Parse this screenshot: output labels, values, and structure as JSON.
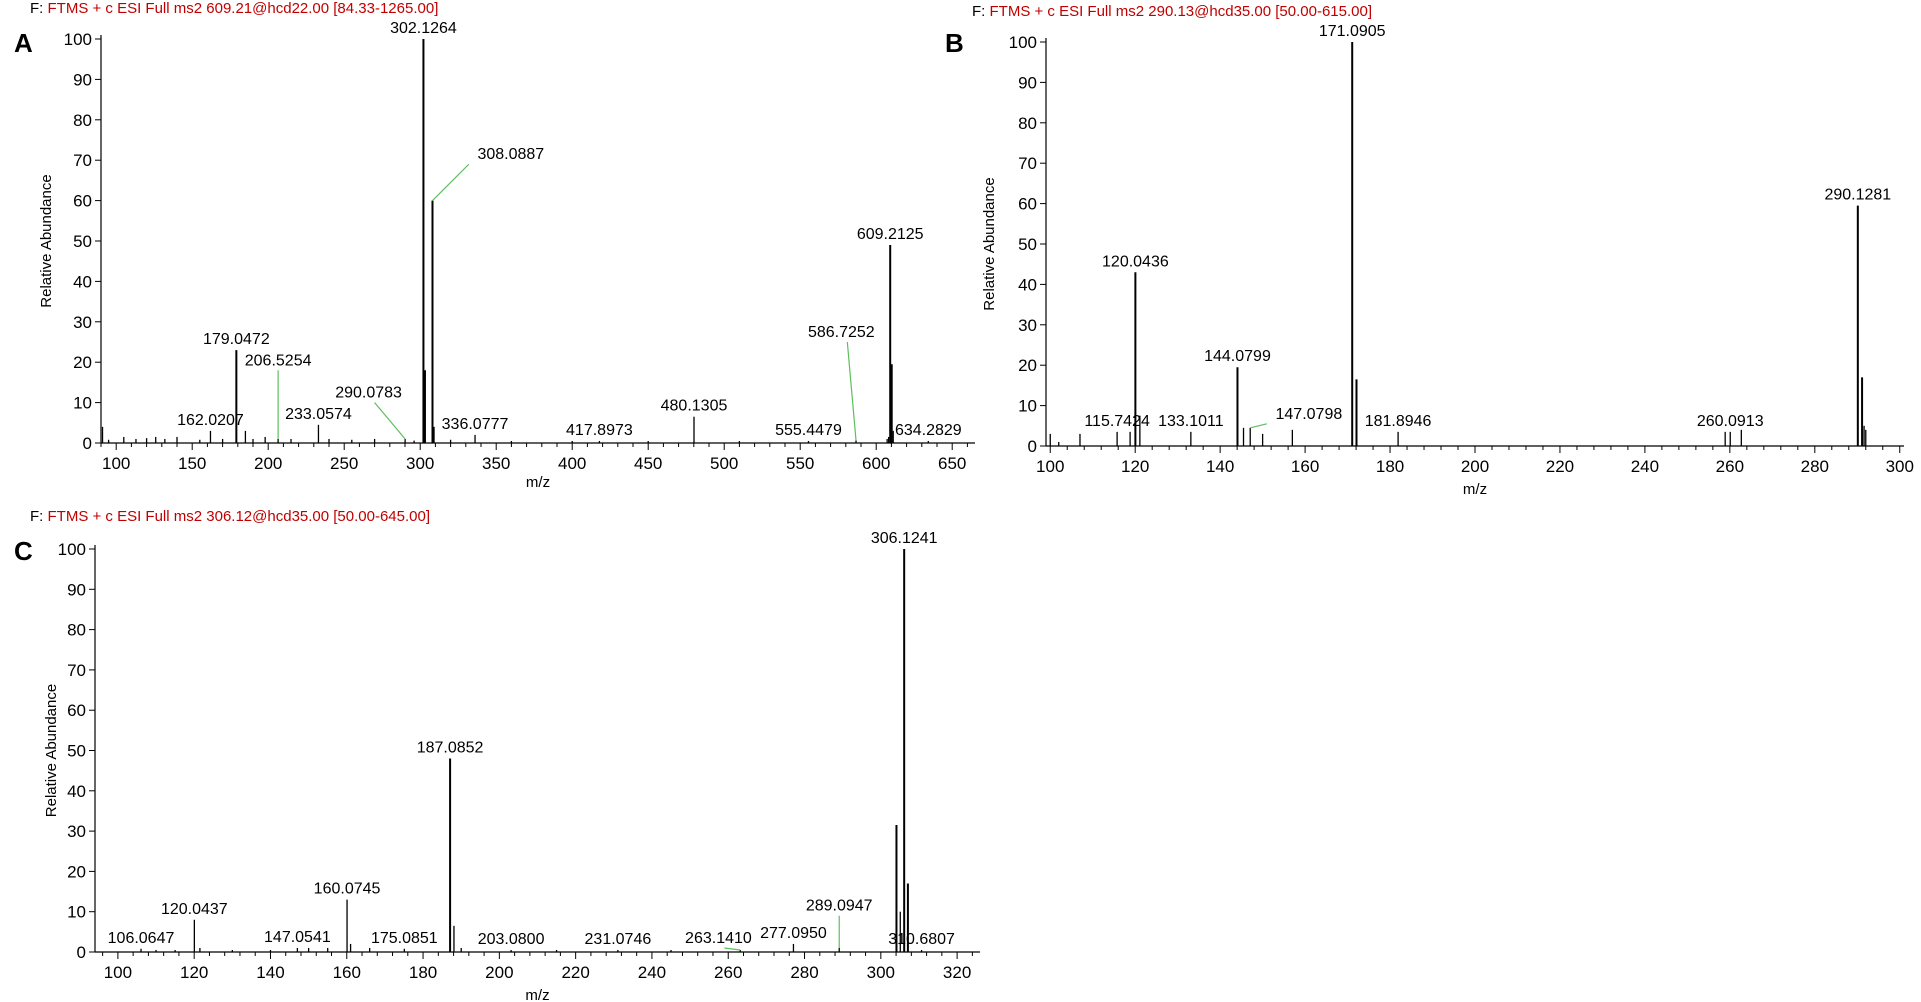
{
  "colors": {
    "title_text": "#c00000",
    "spectrum_line": "#000000",
    "leader_line": "#5cbf5c",
    "axis": "#000000"
  },
  "chart_data": [
    {
      "panel_label": "A",
      "type": "bar",
      "title_prefix": "F:",
      "title": "FTMS + c ESI Full ms2 609.21@hcd22.00 [84.33-1265.00]",
      "xlabel": "m/z",
      "ylabel": "Relative Abundance",
      "xlim": [
        90,
        665
      ],
      "ylim": [
        0,
        100
      ],
      "xticks": [
        100,
        150,
        200,
        250,
        300,
        350,
        400,
        450,
        500,
        550,
        600,
        650
      ],
      "yticks": [
        0,
        10,
        20,
        30,
        40,
        50,
        60,
        70,
        80,
        90,
        100
      ],
      "peaks": [
        {
          "mz": 91,
          "intensity": 4
        },
        {
          "mz": 95,
          "intensity": 0.8
        },
        {
          "mz": 105,
          "intensity": 1.5
        },
        {
          "mz": 113,
          "intensity": 1
        },
        {
          "mz": 120,
          "intensity": 1.2
        },
        {
          "mz": 126,
          "intensity": 1.5
        },
        {
          "mz": 132,
          "intensity": 1
        },
        {
          "mz": 140,
          "intensity": 1.5
        },
        {
          "mz": 155,
          "intensity": 0.8
        },
        {
          "mz": 162.0207,
          "intensity": 3
        },
        {
          "mz": 170,
          "intensity": 1
        },
        {
          "mz": 179.0472,
          "intensity": 23
        },
        {
          "mz": 185,
          "intensity": 3
        },
        {
          "mz": 190,
          "intensity": 1
        },
        {
          "mz": 198,
          "intensity": 1.5
        },
        {
          "mz": 206.5254,
          "intensity": 1
        },
        {
          "mz": 215,
          "intensity": 1
        },
        {
          "mz": 233.0574,
          "intensity": 4.5
        },
        {
          "mz": 240,
          "intensity": 1
        },
        {
          "mz": 255,
          "intensity": 0.8
        },
        {
          "mz": 270,
          "intensity": 1
        },
        {
          "mz": 290.0783,
          "intensity": 1
        },
        {
          "mz": 296,
          "intensity": 0.6
        },
        {
          "mz": 302.1264,
          "intensity": 100
        },
        {
          "mz": 303.13,
          "intensity": 18
        },
        {
          "mz": 308.0887,
          "intensity": 60
        },
        {
          "mz": 309.09,
          "intensity": 4
        },
        {
          "mz": 320,
          "intensity": 0.8
        },
        {
          "mz": 336.0777,
          "intensity": 2
        },
        {
          "mz": 360,
          "intensity": 0.5
        },
        {
          "mz": 400,
          "intensity": 0.5
        },
        {
          "mz": 417.8973,
          "intensity": 0.5
        },
        {
          "mz": 450,
          "intensity": 0.5
        },
        {
          "mz": 480.1305,
          "intensity": 6.5
        },
        {
          "mz": 510,
          "intensity": 0.5
        },
        {
          "mz": 555.4479,
          "intensity": 0.5
        },
        {
          "mz": 586.7252,
          "intensity": 0.6
        },
        {
          "mz": 607.2,
          "intensity": 1
        },
        {
          "mz": 608.2,
          "intensity": 1.5
        },
        {
          "mz": 609.2125,
          "intensity": 49
        },
        {
          "mz": 610.2,
          "intensity": 19.5
        },
        {
          "mz": 611.2,
          "intensity": 3
        },
        {
          "mz": 634.2829,
          "intensity": 0.5
        }
      ],
      "labels": [
        {
          "text": "302.1264",
          "mz": 302.1264,
          "intensity": 100
        },
        {
          "text": "308.0887",
          "mz": 308.0887,
          "intensity": 60,
          "callout_mz": 332,
          "callout_intensity": 69
        },
        {
          "text": "609.2125",
          "mz": 609.2125,
          "intensity": 49
        },
        {
          "text": "179.0472",
          "mz": 179.0472,
          "intensity": 23
        },
        {
          "text": "586.7252",
          "mz": 586.7252,
          "intensity": 0.6,
          "callout_mz": 581,
          "callout_intensity": 25
        },
        {
          "text": "206.5254",
          "mz": 206.5254,
          "intensity": 1,
          "callout_mz": 206.5254,
          "callout_intensity": 18
        },
        {
          "text": "290.0783",
          "mz": 290.0783,
          "intensity": 1,
          "callout_mz": 270,
          "callout_intensity": 10
        },
        {
          "text": "233.0574",
          "mz": 233.0574,
          "intensity": 4.5
        },
        {
          "text": "162.0207",
          "mz": 162.0207,
          "intensity": 3
        },
        {
          "text": "480.1305",
          "mz": 480.1305,
          "intensity": 6.5
        },
        {
          "text": "336.0777",
          "mz": 336.0777,
          "intensity": 2
        },
        {
          "text": "417.8973",
          "mz": 417.8973,
          "intensity": 0.5
        },
        {
          "text": "555.4479",
          "mz": 555.4479,
          "intensity": 0.5
        },
        {
          "text": "634.2829",
          "mz": 634.2829,
          "intensity": 0.5
        }
      ]
    },
    {
      "panel_label": "B",
      "type": "bar",
      "title_prefix": "F:",
      "title": "FTMS + c ESI Full ms2 290.13@hcd35.00 [50.00-615.00]",
      "xlabel": "m/z",
      "ylabel": "Relative Abundance",
      "xlim": [
        99,
        301
      ],
      "ylim": [
        0,
        100
      ],
      "xticks": [
        100,
        120,
        140,
        160,
        180,
        200,
        220,
        240,
        260,
        280,
        300
      ],
      "yticks": [
        0,
        10,
        20,
        30,
        40,
        50,
        60,
        70,
        80,
        90,
        100
      ],
      "peaks": [
        {
          "mz": 100,
          "intensity": 3
        },
        {
          "mz": 102,
          "intensity": 1
        },
        {
          "mz": 107,
          "intensity": 3
        },
        {
          "mz": 115.7424,
          "intensity": 3.5
        },
        {
          "mz": 118.8,
          "intensity": 3.5
        },
        {
          "mz": 120.0436,
          "intensity": 43
        },
        {
          "mz": 121.1,
          "intensity": 7.5
        },
        {
          "mz": 133.1011,
          "intensity": 3.5
        },
        {
          "mz": 144.0799,
          "intensity": 19.5
        },
        {
          "mz": 145.5,
          "intensity": 4.5
        },
        {
          "mz": 147.0798,
          "intensity": 4.5
        },
        {
          "mz": 150,
          "intensity": 3
        },
        {
          "mz": 157,
          "intensity": 4
        },
        {
          "mz": 171.0905,
          "intensity": 100
        },
        {
          "mz": 172.1,
          "intensity": 16.5
        },
        {
          "mz": 181.8946,
          "intensity": 3.5
        },
        {
          "mz": 258.9,
          "intensity": 3.5
        },
        {
          "mz": 260.0913,
          "intensity": 3.5
        },
        {
          "mz": 262.7,
          "intensity": 4
        },
        {
          "mz": 290.1281,
          "intensity": 59.5
        },
        {
          "mz": 291.13,
          "intensity": 17
        },
        {
          "mz": 291.6,
          "intensity": 5
        },
        {
          "mz": 292,
          "intensity": 4
        }
      ],
      "labels": [
        {
          "text": "171.0905",
          "mz": 171.0905,
          "intensity": 100
        },
        {
          "text": "290.1281",
          "mz": 290.1281,
          "intensity": 59.5
        },
        {
          "text": "120.0436",
          "mz": 120.0436,
          "intensity": 43
        },
        {
          "text": "144.0799",
          "mz": 144.0799,
          "intensity": 19.5
        },
        {
          "text": "115.7424",
          "mz": 115.7424,
          "intensity": 3.5
        },
        {
          "text": "133.1011",
          "mz": 133.1011,
          "intensity": 3.5
        },
        {
          "text": "147.0798",
          "mz": 147.0798,
          "intensity": 4.5,
          "callout_mz": 151,
          "callout_intensity": 5.5
        },
        {
          "text": "181.8946",
          "mz": 181.8946,
          "intensity": 3.5
        },
        {
          "text": "260.0913",
          "mz": 260.0913,
          "intensity": 3.5
        }
      ]
    },
    {
      "panel_label": "C",
      "type": "bar",
      "title_prefix": "F:",
      "title": "FTMS + c ESI Full ms2 306.12@hcd35.00 [50.00-645.00]",
      "xlabel": "m/z",
      "ylabel": "Relative Abundance",
      "xlim": [
        94,
        326
      ],
      "ylim": [
        0,
        100
      ],
      "xticks": [
        100,
        120,
        140,
        160,
        180,
        200,
        220,
        240,
        260,
        280,
        300,
        320
      ],
      "yticks": [
        0,
        10,
        20,
        30,
        40,
        50,
        60,
        70,
        80,
        90,
        100
      ],
      "peaks": [
        {
          "mz": 106.0647,
          "intensity": 0.8
        },
        {
          "mz": 110,
          "intensity": 0.5
        },
        {
          "mz": 115,
          "intensity": 0.5
        },
        {
          "mz": 120.0437,
          "intensity": 8
        },
        {
          "mz": 121.5,
          "intensity": 1
        },
        {
          "mz": 130,
          "intensity": 0.5
        },
        {
          "mz": 140,
          "intensity": 0.5
        },
        {
          "mz": 147.0541,
          "intensity": 1
        },
        {
          "mz": 150,
          "intensity": 1
        },
        {
          "mz": 155,
          "intensity": 1
        },
        {
          "mz": 160.0745,
          "intensity": 13
        },
        {
          "mz": 161,
          "intensity": 2
        },
        {
          "mz": 166,
          "intensity": 1
        },
        {
          "mz": 175.0851,
          "intensity": 0.8
        },
        {
          "mz": 187.0852,
          "intensity": 48
        },
        {
          "mz": 188.1,
          "intensity": 6.5
        },
        {
          "mz": 190,
          "intensity": 1
        },
        {
          "mz": 203.08,
          "intensity": 0.5
        },
        {
          "mz": 215,
          "intensity": 0.5
        },
        {
          "mz": 231.0746,
          "intensity": 0.5
        },
        {
          "mz": 245,
          "intensity": 0.5
        },
        {
          "mz": 263.141,
          "intensity": 0.5
        },
        {
          "mz": 277.095,
          "intensity": 2
        },
        {
          "mz": 289.0947,
          "intensity": 1
        },
        {
          "mz": 304.1,
          "intensity": 31.5
        },
        {
          "mz": 305.1,
          "intensity": 10
        },
        {
          "mz": 306.1241,
          "intensity": 100
        },
        {
          "mz": 307.1,
          "intensity": 17
        },
        {
          "mz": 310.6807,
          "intensity": 0.5
        }
      ],
      "labels": [
        {
          "text": "306.1241",
          "mz": 306.1241,
          "intensity": 100
        },
        {
          "text": "187.0852",
          "mz": 187.0852,
          "intensity": 48
        },
        {
          "text": "160.0745",
          "mz": 160.0745,
          "intensity": 13
        },
        {
          "text": "120.0437",
          "mz": 120.0437,
          "intensity": 8
        },
        {
          "text": "289.0947",
          "mz": 289.0947,
          "intensity": 1,
          "callout_mz": 289.0947,
          "callout_intensity": 9
        },
        {
          "text": "106.0647",
          "mz": 106.0647,
          "intensity": 0.8
        },
        {
          "text": "147.0541",
          "mz": 147.0541,
          "intensity": 1
        },
        {
          "text": "175.0851",
          "mz": 175.0851,
          "intensity": 0.8
        },
        {
          "text": "203.0800",
          "mz": 203.08,
          "intensity": 0.5
        },
        {
          "text": "231.0746",
          "mz": 231.0746,
          "intensity": 0.5
        },
        {
          "text": "263.1410",
          "mz": 263.141,
          "intensity": 0.5,
          "callout_mz": 259,
          "callout_intensity": 1
        },
        {
          "text": "277.0950",
          "mz": 277.095,
          "intensity": 2
        },
        {
          "text": "310.6807",
          "mz": 310.6807,
          "intensity": 0.5
        }
      ]
    }
  ]
}
